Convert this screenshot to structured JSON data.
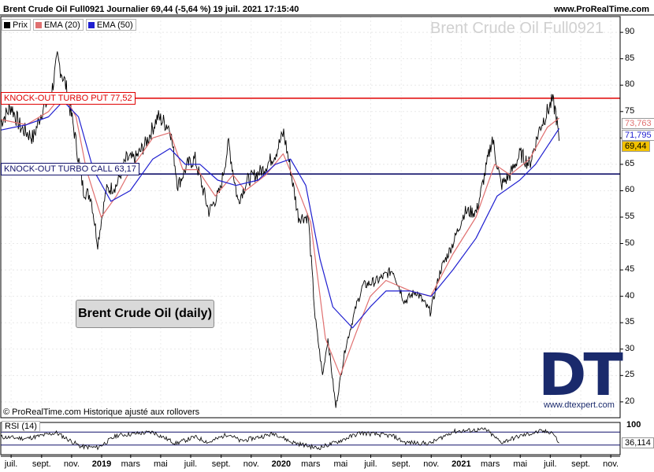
{
  "header": {
    "title": "Brent Crude Oil Full0921 Journalier 69,44 (-5,64 %) 19 juil. 2021 17:15:40",
    "site": "www.ProRealTime.com"
  },
  "legend": [
    {
      "label": "Prix",
      "color": "#000000"
    },
    {
      "label": "EMA (20)",
      "color": "#e07070"
    },
    {
      "label": "EMA (50)",
      "color": "#1f1fd0"
    }
  ],
  "watermark": "Brent Crude Oil Full0921",
  "note_box": "Brent Crude Oil (daily)",
  "copyright": "© ProRealTime.com  Historique ajusté aux rollovers",
  "logo": {
    "text": "DT",
    "subtext": "EXPERT",
    "url": "www.dtexpert.com"
  },
  "rsi": {
    "label": "RSI (14)",
    "scale_top": "100",
    "value_tag": "36,114"
  },
  "price_tags": [
    {
      "label": "73,763",
      "color": "#e07070",
      "value": 73.763
    },
    {
      "label": "71,795",
      "color": "#1f1fd0",
      "value": 71.795
    },
    {
      "label": "69,44",
      "color": "#000000",
      "value": 69.44,
      "highlight": "#f2c200"
    }
  ],
  "chart_data": {
    "type": "line",
    "title": "Brent Crude Oil Full0921 Journalier",
    "ylim": [
      17,
      93
    ],
    "y_ticks": [
      20,
      25,
      30,
      35,
      40,
      45,
      50,
      55,
      60,
      65,
      70,
      75,
      80,
      85,
      90
    ],
    "x_range": [
      "2018-06-10",
      "2021-11-20"
    ],
    "x_ticks": [
      {
        "label": "juil.",
        "date": "2018-07-01",
        "year": false
      },
      {
        "label": "sept.",
        "date": "2018-09-01",
        "year": false
      },
      {
        "label": "nov.",
        "date": "2018-11-01",
        "year": false
      },
      {
        "label": "2019",
        "date": "2019-01-01",
        "year": true
      },
      {
        "label": "mars",
        "date": "2019-03-01",
        "year": false
      },
      {
        "label": "mai",
        "date": "2019-05-01",
        "year": false
      },
      {
        "label": "juil.",
        "date": "2019-07-01",
        "year": false
      },
      {
        "label": "sept.",
        "date": "2019-09-01",
        "year": false
      },
      {
        "label": "nov.",
        "date": "2019-11-01",
        "year": false
      },
      {
        "label": "2020",
        "date": "2020-01-01",
        "year": true
      },
      {
        "label": "mars",
        "date": "2020-03-01",
        "year": false
      },
      {
        "label": "mai",
        "date": "2020-05-01",
        "year": false
      },
      {
        "label": "juil.",
        "date": "2020-07-01",
        "year": false
      },
      {
        "label": "sept.",
        "date": "2020-09-01",
        "year": false
      },
      {
        "label": "nov.",
        "date": "2020-11-01",
        "year": false
      },
      {
        "label": "2021",
        "date": "2021-01-01",
        "year": true
      },
      {
        "label": "mars",
        "date": "2021-03-01",
        "year": false
      },
      {
        "label": "mai",
        "date": "2021-05-01",
        "year": false
      },
      {
        "label": "juil.",
        "date": "2021-07-01",
        "year": false
      },
      {
        "label": "sept.",
        "date": "2021-09-01",
        "year": false
      },
      {
        "label": "nov.",
        "date": "2021-11-01",
        "year": false
      }
    ],
    "levels": [
      {
        "label": "KNOCK-OUT TURBO PUT 77,52",
        "value": 77.52,
        "color": "#e00000"
      },
      {
        "label": "KNOCK-OUT TURBO CALL 63,17",
        "value": 63.17,
        "color": "#10106a"
      }
    ],
    "series": [
      {
        "name": "Prix",
        "color": "#000000",
        "points": [
          [
            "2018-06-10",
            73
          ],
          [
            "2018-07-01",
            76
          ],
          [
            "2018-07-20",
            72
          ],
          [
            "2018-08-15",
            70
          ],
          [
            "2018-09-01",
            75
          ],
          [
            "2018-09-20",
            78
          ],
          [
            "2018-10-03",
            85
          ],
          [
            "2018-10-20",
            80
          ],
          [
            "2018-11-05",
            72
          ],
          [
            "2018-11-25",
            60
          ],
          [
            "2018-12-10",
            59
          ],
          [
            "2018-12-24",
            50
          ],
          [
            "2019-01-10",
            60
          ],
          [
            "2019-01-31",
            61
          ],
          [
            "2019-02-20",
            66
          ],
          [
            "2019-03-10",
            66
          ],
          [
            "2019-04-01",
            69
          ],
          [
            "2019-04-25",
            74
          ],
          [
            "2019-05-20",
            72
          ],
          [
            "2019-06-05",
            61
          ],
          [
            "2019-06-25",
            65
          ],
          [
            "2019-07-10",
            66
          ],
          [
            "2019-08-07",
            56
          ],
          [
            "2019-08-30",
            60
          ],
          [
            "2019-09-16",
            69
          ],
          [
            "2019-10-05",
            58
          ],
          [
            "2019-10-25",
            62
          ],
          [
            "2019-11-25",
            64
          ],
          [
            "2019-12-20",
            67
          ],
          [
            "2020-01-06",
            71
          ],
          [
            "2020-01-20",
            64
          ],
          [
            "2020-02-05",
            55
          ],
          [
            "2020-02-25",
            55
          ],
          [
            "2020-03-10",
            36
          ],
          [
            "2020-03-25",
            25
          ],
          [
            "2020-04-05",
            32
          ],
          [
            "2020-04-21",
            19
          ],
          [
            "2020-05-10",
            30
          ],
          [
            "2020-06-01",
            38
          ],
          [
            "2020-06-15",
            42
          ],
          [
            "2020-07-15",
            43
          ],
          [
            "2020-08-15",
            45
          ],
          [
            "2020-09-08",
            39
          ],
          [
            "2020-10-01",
            41
          ],
          [
            "2020-10-30",
            37
          ],
          [
            "2020-11-20",
            45
          ],
          [
            "2020-12-15",
            50
          ],
          [
            "2021-01-08",
            56
          ],
          [
            "2021-02-01",
            56
          ],
          [
            "2021-02-20",
            64
          ],
          [
            "2021-03-05",
            70
          ],
          [
            "2021-03-23",
            61
          ],
          [
            "2021-04-10",
            63
          ],
          [
            "2021-05-01",
            67
          ],
          [
            "2021-05-20",
            65
          ],
          [
            "2021-06-10",
            72
          ],
          [
            "2021-07-05",
            77
          ],
          [
            "2021-07-12",
            75
          ],
          [
            "2021-07-19",
            69.44
          ]
        ]
      },
      {
        "name": "EMA (20)",
        "color": "#e07070",
        "points": [
          [
            "2018-06-10",
            73.5
          ],
          [
            "2018-08-01",
            72.5
          ],
          [
            "2018-09-15",
            75
          ],
          [
            "2018-10-15",
            78.5
          ],
          [
            "2018-11-10",
            74
          ],
          [
            "2018-12-01",
            64
          ],
          [
            "2018-12-31",
            55
          ],
          [
            "2019-01-31",
            59
          ],
          [
            "2019-03-01",
            64
          ],
          [
            "2019-04-15",
            70
          ],
          [
            "2019-05-20",
            71
          ],
          [
            "2019-06-15",
            64
          ],
          [
            "2019-07-15",
            64
          ],
          [
            "2019-08-20",
            59
          ],
          [
            "2019-09-25",
            63
          ],
          [
            "2019-10-20",
            60
          ],
          [
            "2019-12-01",
            63
          ],
          [
            "2020-01-05",
            67
          ],
          [
            "2020-02-01",
            61
          ],
          [
            "2020-03-01",
            54
          ],
          [
            "2020-03-31",
            32
          ],
          [
            "2020-04-30",
            25
          ],
          [
            "2020-06-01",
            33
          ],
          [
            "2020-06-30",
            40
          ],
          [
            "2020-08-01",
            43
          ],
          [
            "2020-09-20",
            41
          ],
          [
            "2020-10-31",
            40
          ],
          [
            "2020-12-15",
            48
          ],
          [
            "2021-01-31",
            55
          ],
          [
            "2021-03-10",
            65
          ],
          [
            "2021-04-10",
            63
          ],
          [
            "2021-05-20",
            66
          ],
          [
            "2021-06-25",
            72
          ],
          [
            "2021-07-19",
            73.763
          ]
        ]
      },
      {
        "name": "EMA (50)",
        "color": "#1f1fd0",
        "points": [
          [
            "2018-06-10",
            71.5
          ],
          [
            "2018-08-01",
            72.5
          ],
          [
            "2018-09-15",
            74
          ],
          [
            "2018-10-15",
            77
          ],
          [
            "2018-11-15",
            74
          ],
          [
            "2018-12-15",
            64
          ],
          [
            "2019-01-20",
            58
          ],
          [
            "2019-02-28",
            60
          ],
          [
            "2019-04-15",
            66
          ],
          [
            "2019-05-20",
            68
          ],
          [
            "2019-06-20",
            65
          ],
          [
            "2019-07-20",
            65
          ],
          [
            "2019-08-25",
            62
          ],
          [
            "2019-10-01",
            61
          ],
          [
            "2019-11-15",
            62
          ],
          [
            "2019-12-20",
            65
          ],
          [
            "2020-01-20",
            66
          ],
          [
            "2020-02-20",
            61
          ],
          [
            "2020-03-20",
            47
          ],
          [
            "2020-04-15",
            38
          ],
          [
            "2020-05-25",
            34
          ],
          [
            "2020-06-30",
            38
          ],
          [
            "2020-08-01",
            41
          ],
          [
            "2020-09-20",
            41
          ],
          [
            "2020-11-01",
            40
          ],
          [
            "2020-12-15",
            45
          ],
          [
            "2021-01-31",
            51
          ],
          [
            "2021-03-15",
            59
          ],
          [
            "2021-04-30",
            62
          ],
          [
            "2021-06-01",
            65
          ],
          [
            "2021-07-19",
            71.795
          ]
        ]
      }
    ],
    "rsi_series": {
      "name": "RSI (14)",
      "ylim": [
        0,
        100
      ],
      "levels": [
        70,
        30
      ],
      "points": [
        [
          "2018-06-10",
          55
        ],
        [
          "2018-08-01",
          50
        ],
        [
          "2018-10-01",
          68
        ],
        [
          "2018-11-20",
          25
        ],
        [
          "2018-12-24",
          22
        ],
        [
          "2019-02-01",
          60
        ],
        [
          "2019-04-15",
          70
        ],
        [
          "2019-06-01",
          35
        ],
        [
          "2019-07-10",
          55
        ],
        [
          "2019-08-07",
          38
        ],
        [
          "2019-09-16",
          65
        ],
        [
          "2019-10-10",
          42
        ],
        [
          "2019-12-20",
          66
        ],
        [
          "2020-01-20",
          40
        ],
        [
          "2020-03-15",
          20
        ],
        [
          "2020-04-21",
          38
        ],
        [
          "2020-06-10",
          68
        ],
        [
          "2020-08-15",
          58
        ],
        [
          "2020-09-08",
          38
        ],
        [
          "2020-10-30",
          35
        ],
        [
          "2020-12-15",
          72
        ],
        [
          "2021-02-20",
          78
        ],
        [
          "2021-03-23",
          38
        ],
        [
          "2021-05-01",
          58
        ],
        [
          "2021-06-10",
          72
        ],
        [
          "2021-07-05",
          70
        ],
        [
          "2021-07-19",
          36.114
        ]
      ]
    }
  }
}
